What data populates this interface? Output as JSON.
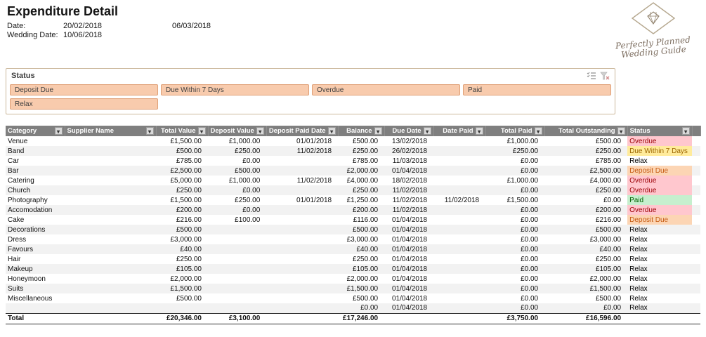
{
  "header": {
    "title": "Expenditure Detail",
    "date_label": "Date:",
    "date_value": "20/02/2018",
    "extra_date": "06/03/2018",
    "wedding_date_label": "Wedding Date:",
    "wedding_date_value": "10/06/2018"
  },
  "logo": {
    "line1": "Perfectly Planned",
    "line2": "Wedding Guide"
  },
  "slicer": {
    "title": "Status",
    "items": [
      "Deposit Due",
      "Due Within 7 Days",
      "Overdue",
      "Paid",
      "Relax"
    ]
  },
  "table": {
    "columns": [
      "Category",
      "Supplier Name",
      "Total Value",
      "Deposit Value",
      "Deposit Paid Date",
      "Balance",
      "Due Date",
      "Date Paid",
      "Total Paid",
      "Total Outstanding",
      "Status"
    ],
    "align": [
      "left",
      "left",
      "right",
      "right",
      "right",
      "right",
      "right",
      "right",
      "right",
      "right",
      "left"
    ],
    "rows": [
      [
        "Venue",
        "",
        "£1,500.00",
        "£1,000.00",
        "01/01/2018",
        "£500.00",
        "13/02/2018",
        "",
        "£1,000.00",
        "£500.00",
        "Overdue"
      ],
      [
        "Band",
        "",
        "£500.00",
        "£250.00",
        "11/02/2018",
        "£250.00",
        "26/02/2018",
        "",
        "£250.00",
        "£250.00",
        "Due Within 7 Days"
      ],
      [
        "Car",
        "",
        "£785.00",
        "£0.00",
        "",
        "£785.00",
        "11/03/2018",
        "",
        "£0.00",
        "£785.00",
        "Relax"
      ],
      [
        "Bar",
        "",
        "£2,500.00",
        "£500.00",
        "",
        "£2,000.00",
        "01/04/2018",
        "",
        "£0.00",
        "£2,500.00",
        "Deposit Due"
      ],
      [
        "Catering",
        "",
        "£5,000.00",
        "£1,000.00",
        "11/02/2018",
        "£4,000.00",
        "18/02/2018",
        "",
        "£1,000.00",
        "£4,000.00",
        "Overdue"
      ],
      [
        "Church",
        "",
        "£250.00",
        "£0.00",
        "",
        "£250.00",
        "11/02/2018",
        "",
        "£0.00",
        "£250.00",
        "Overdue"
      ],
      [
        "Photography",
        "",
        "£1,500.00",
        "£250.00",
        "01/01/2018",
        "£1,250.00",
        "11/02/2018",
        "11/02/2018",
        "£1,500.00",
        "£0.00",
        "Paid"
      ],
      [
        "Accomodation",
        "",
        "£200.00",
        "£0.00",
        "",
        "£200.00",
        "11/02/2018",
        "",
        "£0.00",
        "£200.00",
        "Overdue"
      ],
      [
        "Cake",
        "",
        "£216.00",
        "£100.00",
        "",
        "£116.00",
        "01/04/2018",
        "",
        "£0.00",
        "£216.00",
        "Deposit Due"
      ],
      [
        "Decorations",
        "",
        "£500.00",
        "",
        "",
        "£500.00",
        "01/04/2018",
        "",
        "£0.00",
        "£500.00",
        "Relax"
      ],
      [
        "Dress",
        "",
        "£3,000.00",
        "",
        "",
        "£3,000.00",
        "01/04/2018",
        "",
        "£0.00",
        "£3,000.00",
        "Relax"
      ],
      [
        "Favours",
        "",
        "£40.00",
        "",
        "",
        "£40.00",
        "01/04/2018",
        "",
        "£0.00",
        "£40.00",
        "Relax"
      ],
      [
        "Hair",
        "",
        "£250.00",
        "",
        "",
        "£250.00",
        "01/04/2018",
        "",
        "£0.00",
        "£250.00",
        "Relax"
      ],
      [
        "Makeup",
        "",
        "£105.00",
        "",
        "",
        "£105.00",
        "01/04/2018",
        "",
        "£0.00",
        "£105.00",
        "Relax"
      ],
      [
        "Honeymoon",
        "",
        "£2,000.00",
        "",
        "",
        "£2,000.00",
        "01/04/2018",
        "",
        "£0.00",
        "£2,000.00",
        "Relax"
      ],
      [
        "Suits",
        "",
        "£1,500.00",
        "",
        "",
        "£1,500.00",
        "01/04/2018",
        "",
        "£0.00",
        "£1,500.00",
        "Relax"
      ],
      [
        "Miscellaneous",
        "",
        "£500.00",
        "",
        "",
        "£500.00",
        "01/04/2018",
        "",
        "£0.00",
        "£500.00",
        "Relax"
      ],
      [
        "",
        "",
        "",
        "",
        "",
        "£0.00",
        "01/04/2018",
        "",
        "£0.00",
        "£0.00",
        "Relax"
      ]
    ],
    "total_row": [
      "Total",
      "",
      "£20,346.00",
      "£3,100.00",
      "",
      "£17,246.00",
      "",
      "",
      "£3,750.00",
      "£16,596.00",
      ""
    ]
  },
  "status_styles": {
    "Overdue": {
      "bg": "#ffc7ce",
      "fg": "#9c0006"
    },
    "Due Within 7 Days": {
      "bg": "#ffeb9c",
      "fg": "#9c6500"
    },
    "Deposit Due": {
      "bg": "#fcd5b4",
      "fg": "#c55a11"
    },
    "Paid": {
      "bg": "#c6efce",
      "fg": "#006100"
    },
    "Relax": {
      "bg": "",
      "fg": "#000000"
    }
  },
  "colors": {
    "slicer_fill": "#f8cbad",
    "slicer_border": "#dfa077",
    "table_header_bg": "#7f7f7f",
    "row_band": "#f2f2f2"
  }
}
